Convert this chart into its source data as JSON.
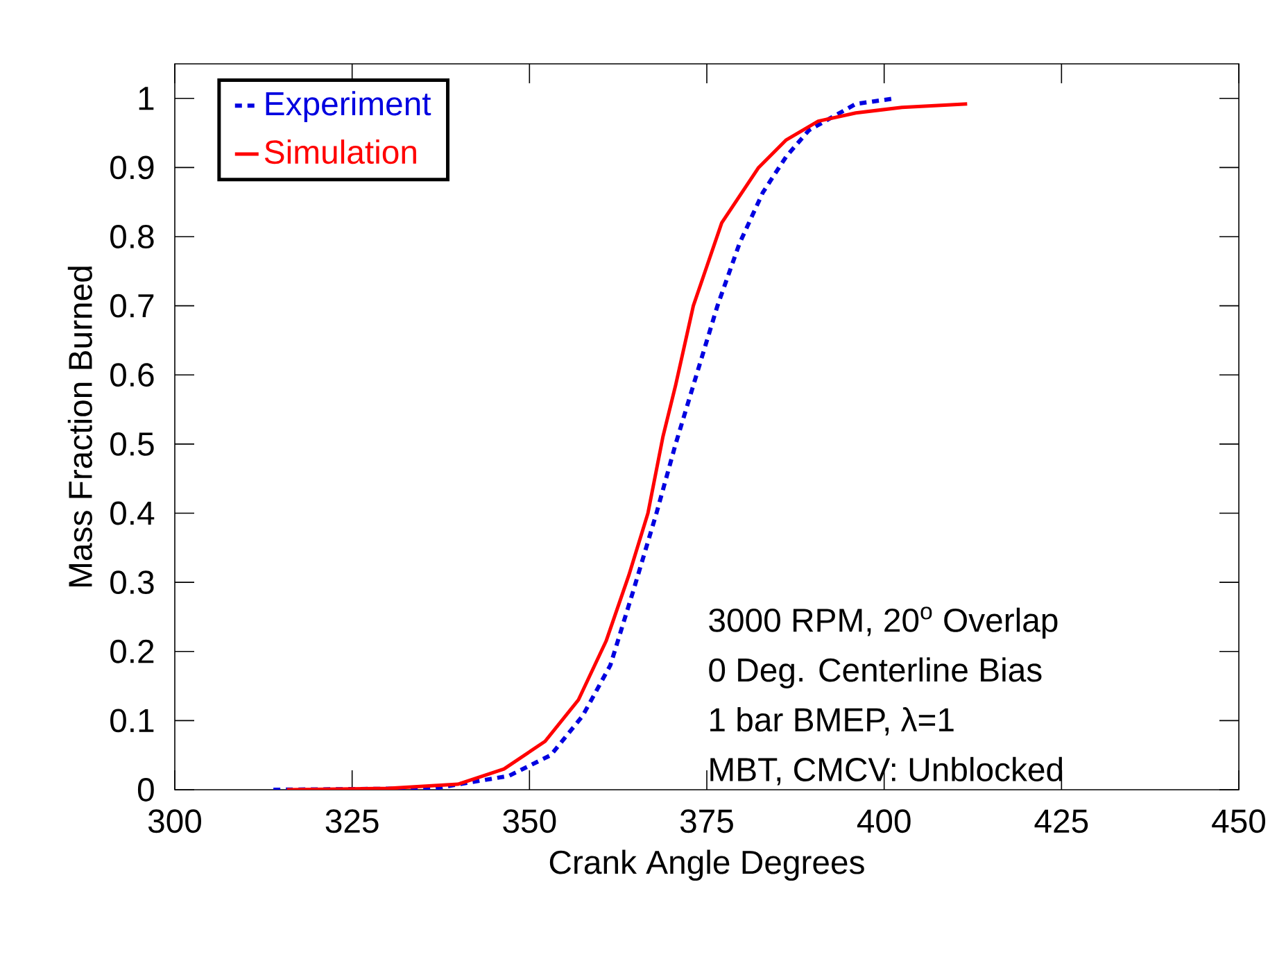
{
  "chart_data": {
    "type": "line",
    "xlabel": "Crank Angle Degrees",
    "ylabel": "Mass Fraction Burned",
    "xlim": [
      300,
      450
    ],
    "xticks": [
      300,
      325,
      350,
      375,
      400,
      425,
      450
    ],
    "ylim": [
      0,
      1.05
    ],
    "yticks": [
      0,
      0.1,
      0.2,
      0.3,
      0.4,
      0.5,
      0.6,
      0.7,
      0.8,
      0.9,
      1
    ],
    "legend": "top left",
    "grid": false,
    "marker": "none",
    "annotations": [
      "3000 RPM, 20$^{o}$ Overlap",
      "0 Deg. Centerline Bias",
      "1 bar BMEP, λ=1",
      "MBT, CMCV: Unblocked"
    ],
    "series": [
      {
        "name": "Experiment",
        "color": "#0000e0",
        "line_style": "dotted",
        "x": [
          313.9,
          336.6,
          347.1,
          353,
          357.5,
          361.4,
          364.7,
          367.9,
          370.6,
          373.1,
          376.5,
          379.6,
          382.9,
          386.2,
          389.4,
          392.7,
          396,
          401.5
        ],
        "values": [
          0,
          0.002,
          0.02,
          0.05,
          0.107,
          0.18,
          0.29,
          0.4,
          0.5,
          0.585,
          0.7,
          0.79,
          0.864,
          0.916,
          0.954,
          0.973,
          0.992,
          1.0
        ]
      },
      {
        "name": "Simulation",
        "color": "#ff0000",
        "line_style": "solid",
        "x": [
          315.8,
          330.1,
          339.9,
          346.4,
          352.2,
          356.9,
          360.8,
          364,
          366.7,
          368.8,
          370.6,
          373.1,
          377.1,
          382.3,
          386.2,
          390.7,
          396,
          402.5,
          411.7
        ],
        "values": [
          0,
          0.002,
          0.008,
          0.03,
          0.07,
          0.13,
          0.215,
          0.31,
          0.4,
          0.51,
          0.585,
          0.7,
          0.82,
          0.9,
          0.94,
          0.967,
          0.979,
          0.987,
          0.992
        ]
      }
    ]
  }
}
